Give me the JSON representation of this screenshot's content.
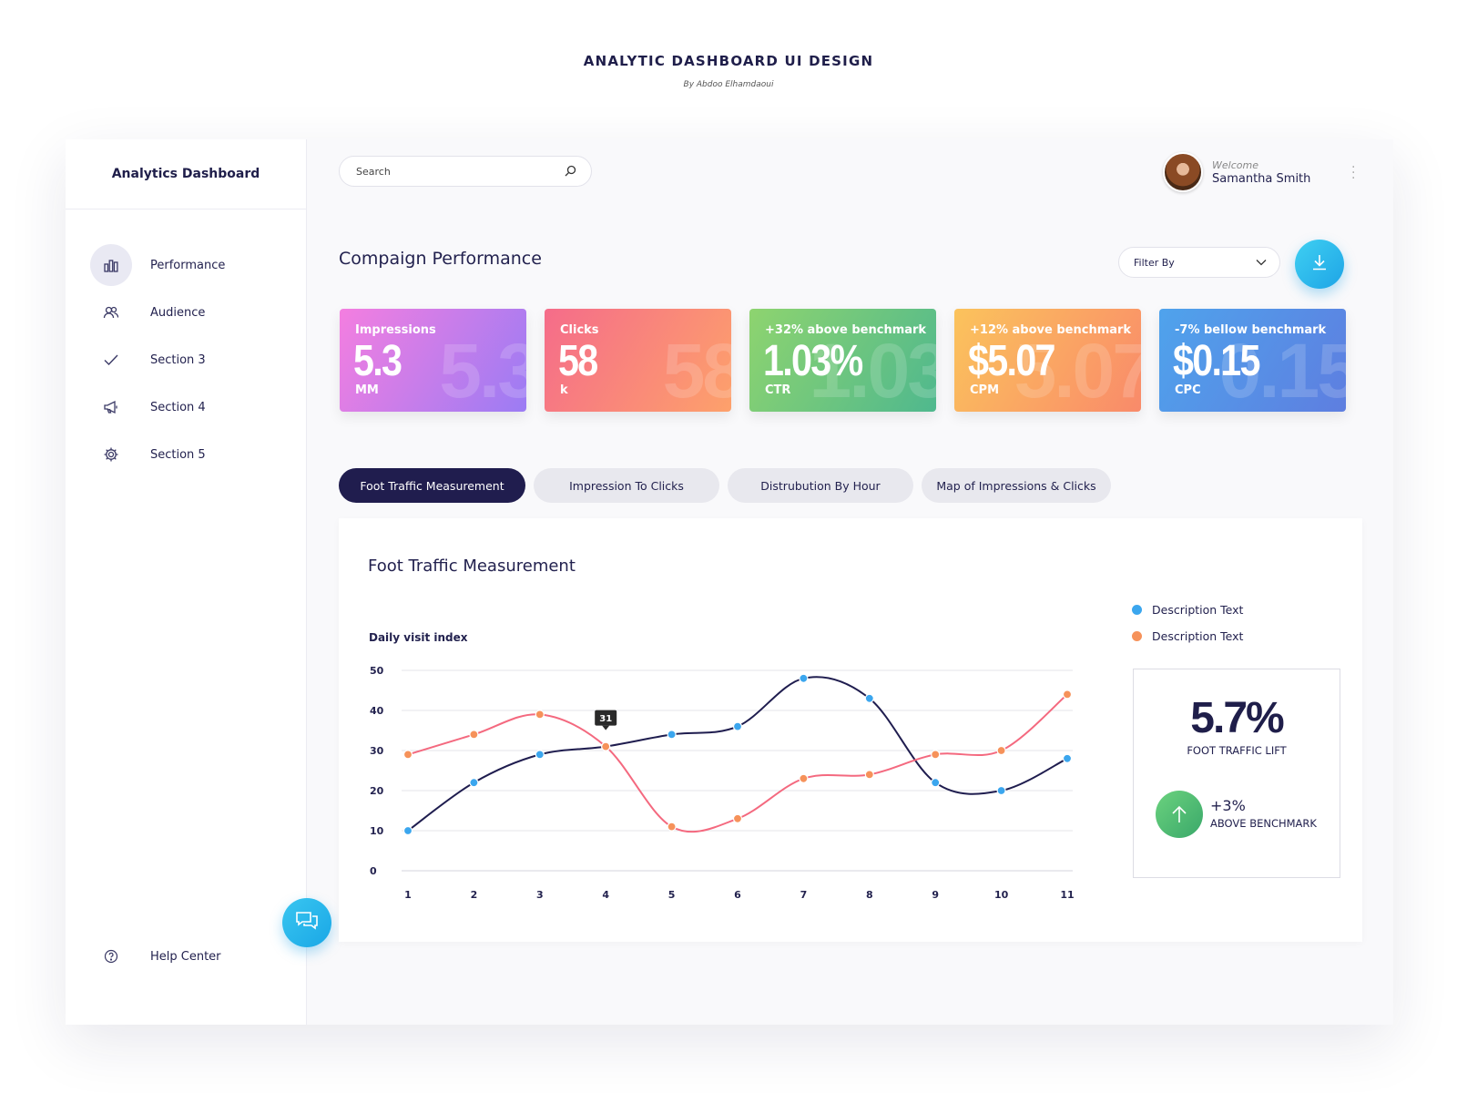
{
  "header": {
    "title": "ANALYTIC DASHBOARD UI DESIGN",
    "byline": "By Abdoo Elhamdaoui"
  },
  "sidebar": {
    "brand": "Analytics Dashboard",
    "items": [
      {
        "label": "Performance",
        "icon": "bar-chart-icon",
        "active": true
      },
      {
        "label": "Audience",
        "icon": "users-icon"
      },
      {
        "label": "Section 3",
        "icon": "check-icon"
      },
      {
        "label": "Section 4",
        "icon": "megaphone-icon"
      },
      {
        "label": "Section 5",
        "icon": "gear-icon"
      }
    ],
    "help": "Help Center"
  },
  "topbar": {
    "search_placeholder": "Search",
    "welcome": "Welcome",
    "user_name": "Samantha Smith"
  },
  "campaign": {
    "title": "Compaign Performance",
    "filter_label": "Filter By"
  },
  "kpis": [
    {
      "caption": "Impressions",
      "value": "5.3",
      "ghost": "5.3",
      "unit": "MM",
      "gradient": [
        "#f47ee0",
        "#9b7cf4"
      ]
    },
    {
      "caption": "Clicks",
      "value": "58",
      "ghost": "58",
      "unit": "k",
      "gradient": [
        "#f56c8a",
        "#fda16b"
      ]
    },
    {
      "caption": "+32% above benchmark",
      "value": "1.03%",
      "ghost": "1.03",
      "unit": "CTR",
      "gradient": [
        "#8ed46f",
        "#4fb88e"
      ]
    },
    {
      "caption": "+12% above benchmark",
      "value": "$5.07",
      "ghost": "5.07",
      "unit": "CPM",
      "gradient": [
        "#fbc35c",
        "#f98a6a"
      ]
    },
    {
      "caption": "-7% bellow benchmark",
      "value": "$0.15",
      "ghost": "0.15",
      "unit": "CPC",
      "gradient": [
        "#4fa3ec",
        "#5e7ee0"
      ]
    }
  ],
  "tabs": [
    {
      "label": "Foot Traffic Measurement",
      "active": true
    },
    {
      "label": "Impression To Clicks"
    },
    {
      "label": "Distrubution By Hour"
    },
    {
      "label": "Map of Impressions & Clicks"
    }
  ],
  "chart_card": {
    "title": "Foot Traffic Measurement",
    "legend": [
      {
        "label": "Description Text",
        "color": "#3ba6ee"
      },
      {
        "label": "Description Text",
        "color": "#f6925a"
      }
    ]
  },
  "lift": {
    "value": "5.7%",
    "label": "FOOT TRAFFIC LIFT",
    "benchmark_value": "+3%",
    "benchmark_label": "ABOVE BENCHMARK"
  },
  "chart_data": {
    "type": "line",
    "title": "Foot Traffic Measurement",
    "ylabel": "Daily visit index",
    "xlabel": "",
    "x": [
      1,
      2,
      3,
      4,
      5,
      6,
      7,
      8,
      9,
      10,
      11
    ],
    "yticks": [
      0,
      10,
      20,
      30,
      40,
      50
    ],
    "ylim": [
      0,
      50
    ],
    "series": [
      {
        "name": "Description Text",
        "line_color": "#1f1d4f",
        "marker_color": "#3ba6ee",
        "values": [
          10,
          22,
          29,
          31,
          34,
          36,
          48,
          43,
          22,
          20,
          28
        ]
      },
      {
        "name": "Description Text",
        "line_color": "#f4697f",
        "marker_color": "#f6925a",
        "values": [
          29,
          34,
          39,
          31,
          11,
          13,
          23,
          24,
          29,
          30,
          44
        ]
      }
    ],
    "annotation": {
      "x": 4,
      "label": "31"
    }
  }
}
